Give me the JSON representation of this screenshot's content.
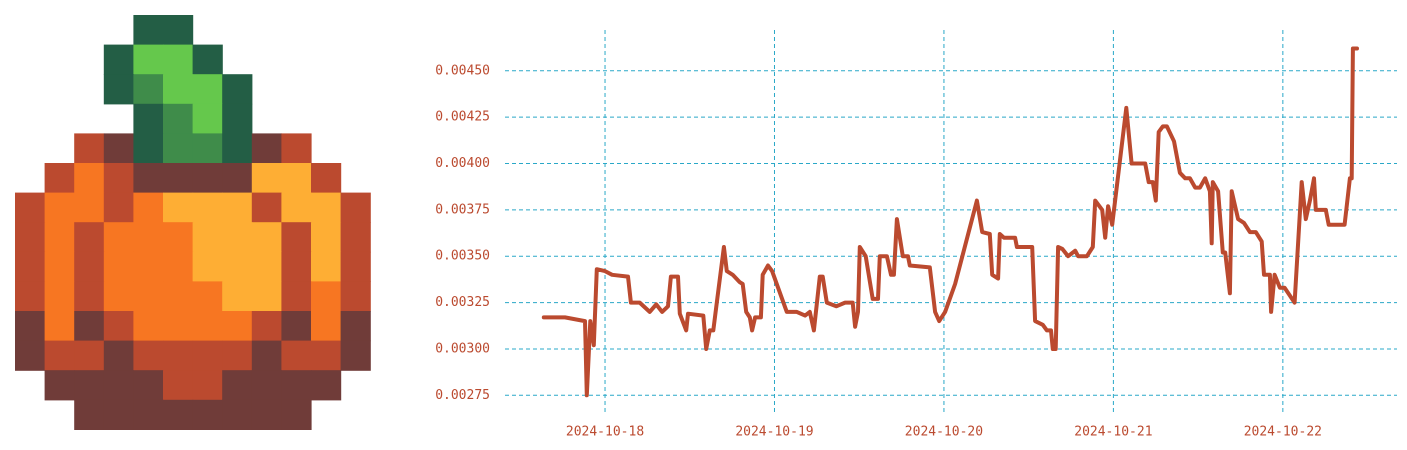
{
  "chart_data": {
    "type": "line",
    "color": "#bb4a2f",
    "grid": true,
    "x": [
      "2024-10-17 15:20",
      "2024-10-17 18:20",
      "2024-10-17 21:10",
      "2024-10-17 21:25",
      "2024-10-17 21:55",
      "2024-10-17 22:25",
      "2024-10-17 22:50",
      "2024-10-18 00:00",
      "2024-10-18 01:00",
      "2024-10-18 03:15",
      "2024-10-18 03:40",
      "2024-10-18 04:55",
      "2024-10-18 06:20",
      "2024-10-18 07:15",
      "2024-10-18 08:05",
      "2024-10-18 08:55",
      "2024-10-18 09:20",
      "2024-10-18 10:20",
      "2024-10-18 10:35",
      "2024-10-18 11:30",
      "2024-10-18 11:45",
      "2024-10-18 13:55",
      "2024-10-18 14:20",
      "2024-10-18 14:50",
      "2024-10-18 15:20",
      "2024-10-18 15:50",
      "2024-10-18 16:50",
      "2024-10-18 17:15",
      "2024-10-18 18:05",
      "2024-10-18 19:05",
      "2024-10-18 19:30",
      "2024-10-18 20:00",
      "2024-10-18 20:30",
      "2024-10-18 20:50",
      "2024-10-18 21:15",
      "2024-10-18 22:05",
      "2024-10-18 22:20",
      "2024-10-18 23:05",
      "2024-10-18 23:40",
      "2024-10-19 01:45",
      "2024-10-19 03:10",
      "2024-10-19 04:20",
      "2024-10-19 05:00",
      "2024-10-19 05:35",
      "2024-10-19 06:25",
      "2024-10-19 06:50",
      "2024-10-19 07:25",
      "2024-10-19 08:45",
      "2024-10-19 10:00",
      "2024-10-19 11:05",
      "2024-10-19 11:25",
      "2024-10-19 11:50",
      "2024-10-19 12:05",
      "2024-10-19 12:55",
      "2024-10-19 13:55",
      "2024-10-19 14:40",
      "2024-10-19 14:55",
      "2024-10-19 15:55",
      "2024-10-19 16:30",
      "2024-10-19 16:55",
      "2024-10-19 17:20",
      "2024-10-19 18:10",
      "2024-10-19 18:55",
      "2024-10-19 19:10",
      "2024-10-19 22:00",
      "2024-10-19 22:45",
      "2024-10-19 23:20",
      "2024-10-20 00:10",
      "2024-10-20 01:35",
      "2024-10-20 04:40",
      "2024-10-20 05:25",
      "2024-10-20 06:30",
      "2024-10-20 06:50",
      "2024-10-20 07:40",
      "2024-10-20 07:55",
      "2024-10-20 08:30",
      "2024-10-20 10:05",
      "2024-10-20 10:20",
      "2024-10-20 12:30",
      "2024-10-20 12:55",
      "2024-10-20 14:00",
      "2024-10-20 14:35",
      "2024-10-20 15:10",
      "2024-10-20 15:25",
      "2024-10-20 15:50",
      "2024-10-20 16:10",
      "2024-10-20 16:45",
      "2024-10-20 17:35",
      "2024-10-20 18:35",
      "2024-10-20 19:00",
      "2024-10-20 20:15",
      "2024-10-20 21:05",
      "2024-10-20 21:25",
      "2024-10-20 22:25",
      "2024-10-20 22:50",
      "2024-10-20 23:15",
      "2024-10-20 23:50",
      "2024-10-21 01:50",
      "2024-10-21 02:35",
      "2024-10-21 04:30",
      "2024-10-21 05:00",
      "2024-10-21 05:35",
      "2024-10-21 06:00",
      "2024-10-21 06:25",
      "2024-10-21 07:00",
      "2024-10-21 07:35",
      "2024-10-21 08:35",
      "2024-10-21 09:25",
      "2024-10-21 10:10",
      "2024-10-21 10:50",
      "2024-10-21 11:35",
      "2024-10-21 12:15",
      "2024-10-21 13:00",
      "2024-10-21 13:40",
      "2024-10-21 13:55",
      "2024-10-21 14:05",
      "2024-10-21 14:50",
      "2024-10-21 15:30",
      "2024-10-21 15:50",
      "2024-10-21 16:30",
      "2024-10-21 16:45",
      "2024-10-21 17:40",
      "2024-10-21 18:30",
      "2024-10-21 19:20",
      "2024-10-21 20:10",
      "2024-10-21 21:00",
      "2024-10-21 21:20",
      "2024-10-21 22:10",
      "2024-10-21 22:20",
      "2024-10-21 22:50",
      "2024-10-21 23:35",
      "2024-10-22 00:15",
      "2024-10-22 01:40",
      "2024-10-22 02:40",
      "2024-10-22 03:15",
      "2024-10-22 03:50",
      "2024-10-22 04:25",
      "2024-10-22 04:40",
      "2024-10-22 06:05",
      "2024-10-22 06:30",
      "2024-10-22 08:45",
      "2024-10-22 09:30",
      "2024-10-22 09:45",
      "2024-10-22 09:55",
      "2024-10-22 10:30"
    ],
    "values": [
      0.00317,
      0.00317,
      0.00315,
      0.00275,
      0.00315,
      0.00302,
      0.00343,
      0.00342,
      0.0034,
      0.00339,
      0.00325,
      0.00325,
      0.0032,
      0.00324,
      0.0032,
      0.00323,
      0.00339,
      0.00339,
      0.00319,
      0.0031,
      0.00319,
      0.00318,
      0.003,
      0.0031,
      0.0031,
      0.00325,
      0.00355,
      0.00342,
      0.0034,
      0.00336,
      0.00335,
      0.0032,
      0.00317,
      0.0031,
      0.00317,
      0.00317,
      0.0034,
      0.00345,
      0.00342,
      0.0032,
      0.0032,
      0.00318,
      0.0032,
      0.0031,
      0.00339,
      0.00339,
      0.00325,
      0.00323,
      0.00325,
      0.00325,
      0.00312,
      0.0032,
      0.00355,
      0.0035,
      0.00327,
      0.00327,
      0.0035,
      0.0035,
      0.0034,
      0.0034,
      0.0037,
      0.0035,
      0.0035,
      0.00345,
      0.00344,
      0.0032,
      0.00315,
      0.0032,
      0.00335,
      0.0038,
      0.00363,
      0.00362,
      0.0034,
      0.00338,
      0.00362,
      0.0036,
      0.0036,
      0.00355,
      0.00355,
      0.00315,
      0.00313,
      0.0031,
      0.0031,
      0.003,
      0.003,
      0.00355,
      0.00354,
      0.0035,
      0.00353,
      0.0035,
      0.0035,
      0.00355,
      0.0038,
      0.00375,
      0.0036,
      0.00377,
      0.00367,
      0.0043,
      0.004,
      0.004,
      0.0039,
      0.0039,
      0.0038,
      0.00417,
      0.0042,
      0.0042,
      0.00412,
      0.00395,
      0.00392,
      0.00392,
      0.00387,
      0.00387,
      0.00392,
      0.00385,
      0.00357,
      0.0039,
      0.00385,
      0.00352,
      0.00352,
      0.0033,
      0.00385,
      0.0037,
      0.00368,
      0.00363,
      0.00363,
      0.00358,
      0.0034,
      0.0034,
      0.0032,
      0.0034,
      0.00333,
      0.00333,
      0.00325,
      0.0039,
      0.0037,
      0.0038,
      0.00392,
      0.00375,
      0.00375,
      0.00367,
      0.00367,
      0.00392,
      0.00392,
      0.00462,
      0.00462
    ],
    "xlim": [
      "2024-10-17 09:50",
      "2024-10-22 16:10"
    ],
    "xticks": [
      "2024-10-18",
      "2024-10-19",
      "2024-10-20",
      "2024-10-21",
      "2024-10-22"
    ],
    "ylim": [
      0.00266,
      0.00472
    ],
    "yticks": [
      0.00275,
      {
        "value": 0.003,
        "label": "0.00300"
      },
      0.00325,
      {
        "value": 0.0035,
        "label": "0.00350"
      },
      0.00375,
      {
        "value": 0.004,
        "label": "0.00400"
      },
      0.00425,
      {
        "value": 0.0045,
        "label": "0.00450"
      }
    ]
  }
}
